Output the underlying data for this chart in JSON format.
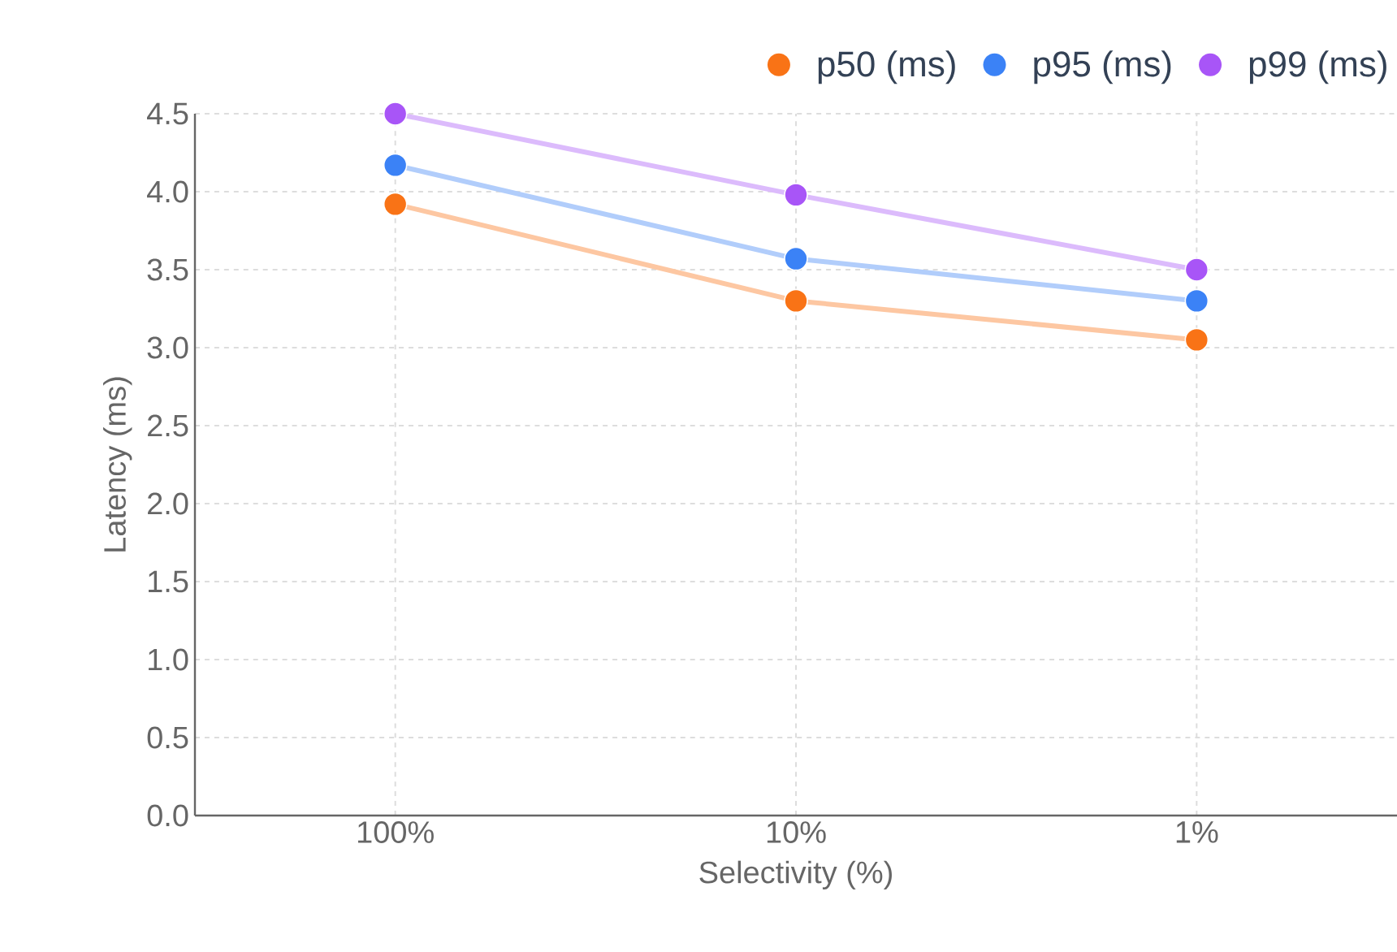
{
  "chart_data": {
    "type": "line",
    "xlabel": "Selectivity (%)",
    "ylabel": "Latency (ms)",
    "categories": [
      "100%",
      "10%",
      "1%"
    ],
    "series": [
      {
        "name": "p50 (ms)",
        "color": "#f97316",
        "values": [
          3.92,
          3.3,
          3.05
        ]
      },
      {
        "name": "p95 (ms)",
        "color": "#3b82f6",
        "values": [
          4.17,
          3.57,
          3.3
        ]
      },
      {
        "name": "p99 (ms)",
        "color": "#a855f7",
        "values": [
          4.5,
          3.98,
          3.5
        ]
      }
    ],
    "ylim": [
      0,
      4.5
    ],
    "yticks": [
      {
        "value": 0,
        "label": "0.0"
      },
      {
        "value": 0.5,
        "label": "0.5"
      },
      {
        "value": 1,
        "label": "1.0"
      },
      {
        "value": 1.5,
        "label": "1.5"
      },
      {
        "value": 2,
        "label": "2.0"
      },
      {
        "value": 2.5,
        "label": "2.5"
      },
      {
        "value": 3,
        "label": "3.0"
      },
      {
        "value": 3.5,
        "label": "3.5"
      },
      {
        "value": 4,
        "label": "4.0"
      },
      {
        "value": 4.5,
        "label": "4.5"
      }
    ],
    "grid": true,
    "legend": "top right",
    "marker": "circle",
    "line_style": "solid"
  }
}
